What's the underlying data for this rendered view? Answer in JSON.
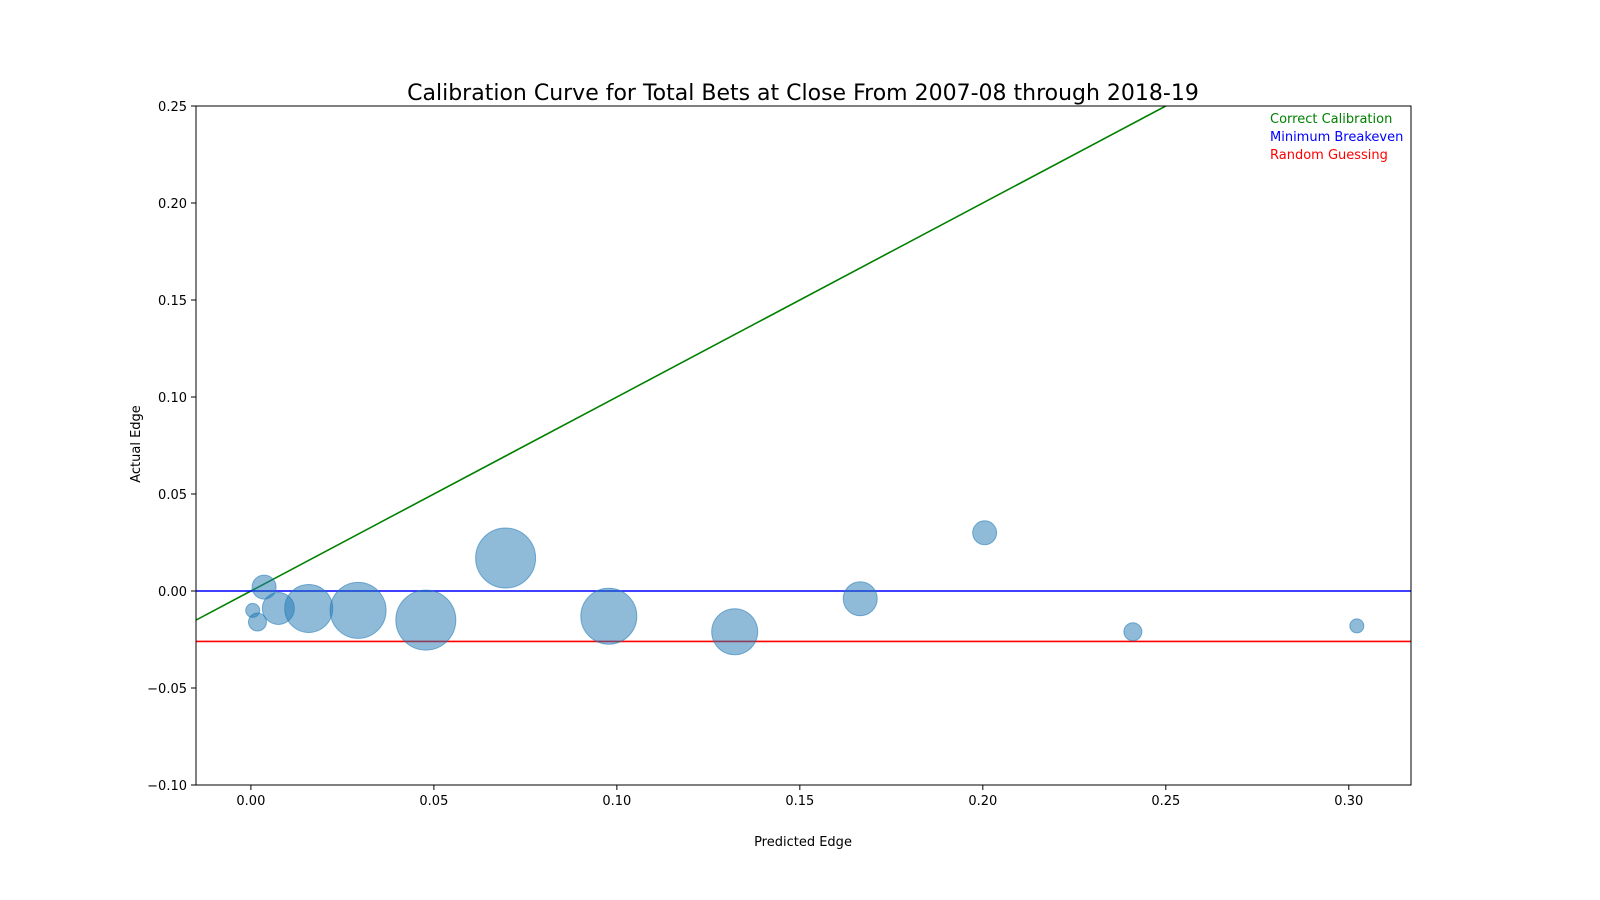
{
  "chart_data": {
    "type": "scatter",
    "title": "Calibration Curve for Total Bets at Close From 2007-08 through 2018-19",
    "xlabel": "Predicted Edge",
    "ylabel": "Actual Edge",
    "xlim": [
      -0.015,
      0.317
    ],
    "ylim": [
      -0.1,
      0.25
    ],
    "xticks": [
      0.0,
      0.05,
      0.1,
      0.15,
      0.2,
      0.25,
      0.3
    ],
    "xtick_labels": [
      "0.00",
      "0.05",
      "0.10",
      "0.15",
      "0.20",
      "0.25",
      "0.30"
    ],
    "yticks": [
      -0.1,
      -0.05,
      0.0,
      0.05,
      0.1,
      0.15,
      0.2,
      0.25
    ],
    "ytick_labels": [
      "−0.10",
      "−0.05",
      "0.00",
      "0.05",
      "0.10",
      "0.15",
      "0.20",
      "0.25"
    ],
    "grid": false,
    "legend_placement": "top-right",
    "bubble_color": "#1f77b4",
    "bubble_alpha": 0.5,
    "points": [
      {
        "x": 0.0005,
        "y": -0.01,
        "size": 7
      },
      {
        "x": 0.0018,
        "y": -0.016,
        "size": 9
      },
      {
        "x": 0.0036,
        "y": 0.002,
        "size": 12
      },
      {
        "x": 0.0075,
        "y": -0.009,
        "size": 16
      },
      {
        "x": 0.0158,
        "y": -0.009,
        "size": 24
      },
      {
        "x": 0.0293,
        "y": -0.01,
        "size": 28
      },
      {
        "x": 0.0478,
        "y": -0.015,
        "size": 30
      },
      {
        "x": 0.0696,
        "y": 0.017,
        "size": 30
      },
      {
        "x": 0.0978,
        "y": -0.013,
        "size": 28
      },
      {
        "x": 0.1322,
        "y": -0.021,
        "size": 23
      },
      {
        "x": 0.1665,
        "y": -0.004,
        "size": 17
      },
      {
        "x": 0.2005,
        "y": 0.03,
        "size": 12
      },
      {
        "x": 0.241,
        "y": -0.021,
        "size": 9
      },
      {
        "x": 0.3022,
        "y": -0.018,
        "size": 7
      }
    ],
    "lines": [
      {
        "name": "Correct Calibration",
        "color": "#008000",
        "kind": "diagonal",
        "slope": 1,
        "intercept": 0
      },
      {
        "name": "Minimum Breakeven",
        "color": "#0000ff",
        "kind": "horizontal",
        "y": 0.0
      },
      {
        "name": "Random Guessing",
        "color": "#ff0000",
        "kind": "horizontal",
        "y": -0.026
      }
    ],
    "legend": [
      {
        "label": "Correct Calibration",
        "color": "#008000"
      },
      {
        "label": "Minimum Breakeven",
        "color": "#0000ff"
      },
      {
        "label": "Random Guessing",
        "color": "#ff0000"
      }
    ]
  }
}
